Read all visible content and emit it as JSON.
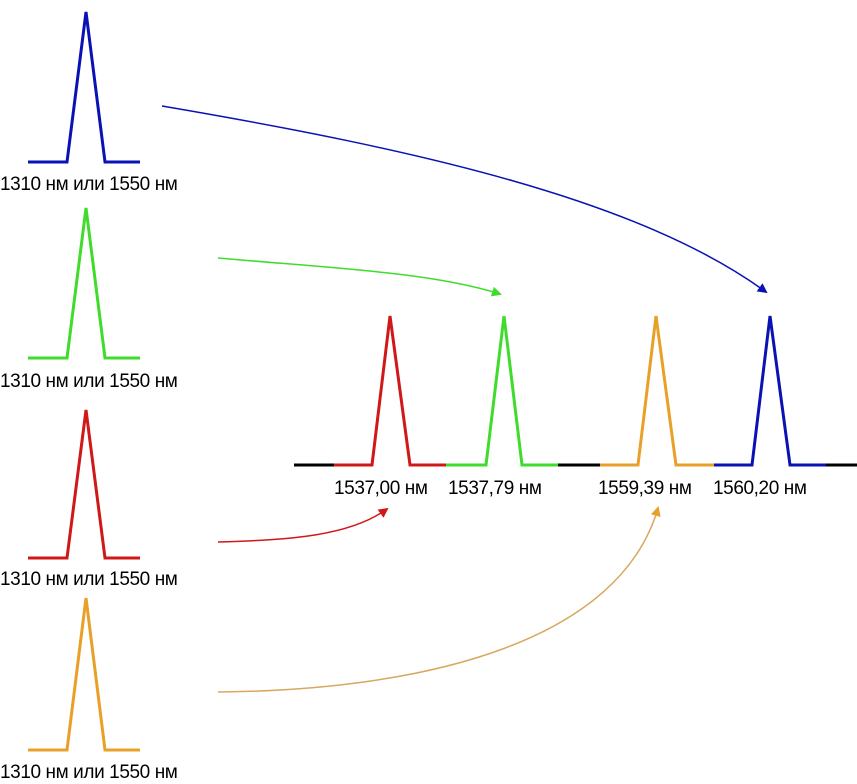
{
  "colors": {
    "blue": "#0a12b4",
    "green": "#3fdc2c",
    "red": "#d01818",
    "orange": "#e8a028",
    "baseline": "#000000"
  },
  "sources": [
    {
      "label": "1310 нм или 1550 нм",
      "color": "blue"
    },
    {
      "label": "1310 нм или 1550 нм",
      "color": "green"
    },
    {
      "label": "1310 нм или 1550 нм",
      "color": "red"
    },
    {
      "label": "1310 нм или 1550 нм",
      "color": "orange"
    }
  ],
  "outputs": [
    {
      "label": "1537,00 нм",
      "color": "red"
    },
    {
      "label": "1537,79 нм",
      "color": "green"
    },
    {
      "label": "1559,39 нм",
      "color": "orange"
    },
    {
      "label": "1560,20 нм",
      "color": "blue"
    }
  ]
}
